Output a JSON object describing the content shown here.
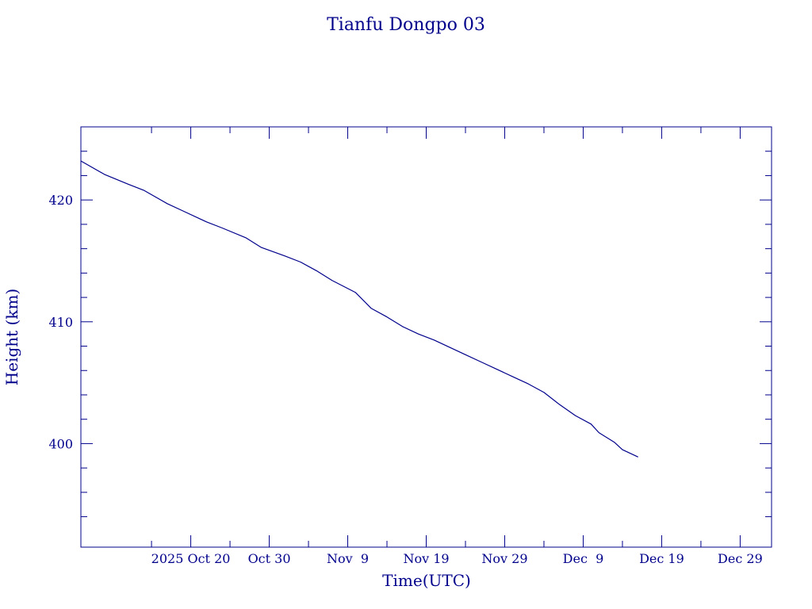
{
  "chart_data": {
    "type": "line",
    "title": "Tianfu Dongpo 03",
    "xlabel": "Time(UTC)",
    "ylabel": "Height (km)",
    "color": "#00008b",
    "x_axis_type": "date",
    "xlim": [
      "2025-10-06",
      "2026-01-02"
    ],
    "ylim": [
      391.5,
      426.0
    ],
    "x_tick_labels": [
      {
        "date": "2025-10-20",
        "label": "2025 Oct 20"
      },
      {
        "date": "2025-10-30",
        "label": "Oct 30"
      },
      {
        "date": "2025-11-09",
        "label": "Nov  9"
      },
      {
        "date": "2025-11-19",
        "label": "Nov 19"
      },
      {
        "date": "2025-11-29",
        "label": "Nov 29"
      },
      {
        "date": "2025-12-09",
        "label": "Dec  9"
      },
      {
        "date": "2025-12-19",
        "label": "Dec 19"
      },
      {
        "date": "2025-12-29",
        "label": "Dec 29"
      }
    ],
    "y_ticks": [
      400,
      410,
      420
    ],
    "y_minor_ticks": [
      394,
      396,
      398,
      402,
      404,
      406,
      408,
      412,
      414,
      416,
      418,
      422,
      424
    ],
    "series": [
      {
        "x": [
          "2025-10-06",
          "2025-10-09",
          "2025-10-12",
          "2025-10-14",
          "2025-10-17",
          "2025-10-19",
          "2025-10-22",
          "2025-10-24",
          "2025-10-27",
          "2025-10-29",
          "2025-11-01",
          "2025-11-03",
          "2025-11-05",
          "2025-11-07",
          "2025-11-10",
          "2025-11-12",
          "2025-11-14",
          "2025-11-16",
          "2025-11-18",
          "2025-11-20",
          "2025-11-22",
          "2025-11-24",
          "2025-11-26",
          "2025-11-28",
          "2025-11-30",
          "2025-12-02",
          "2025-12-04",
          "2025-12-06",
          "2025-12-08",
          "2025-12-10",
          "2025-12-11",
          "2025-12-13",
          "2025-12-14",
          "2025-12-16"
        ],
        "y": [
          423.2,
          422.1,
          421.3,
          420.8,
          419.7,
          419.1,
          418.2,
          417.7,
          416.9,
          416.1,
          415.4,
          414.9,
          414.2,
          413.4,
          412.4,
          411.1,
          410.4,
          409.6,
          409.0,
          408.5,
          407.9,
          407.3,
          406.7,
          406.1,
          405.5,
          404.9,
          404.2,
          403.2,
          402.3,
          401.6,
          400.9,
          400.1,
          399.5,
          398.9
        ]
      }
    ]
  }
}
